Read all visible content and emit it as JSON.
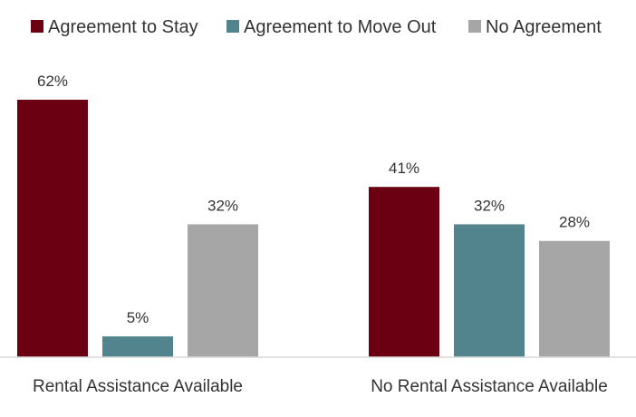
{
  "chart_data": {
    "type": "bar",
    "title": "",
    "xlabel": "",
    "ylabel": "",
    "categories": [
      "Rental Assistance Available",
      "No Rental Assistance Available"
    ],
    "series": [
      {
        "name": "Agreement to Stay",
        "color": "#6b0013",
        "values": [
          62,
          41
        ],
        "labels": [
          "62%",
          "41%"
        ]
      },
      {
        "name": "Agreement to Move Out",
        "color": "#52848d",
        "values": [
          5,
          32
        ],
        "labels": [
          "5%",
          "32%"
        ]
      },
      {
        "name": "No Agreement",
        "color": "#a6a6a6",
        "values": [
          32,
          28
        ],
        "labels": [
          "32%",
          "28%"
        ]
      }
    ],
    "ylim": [
      0,
      62
    ],
    "grid": false,
    "legend_position": "top"
  }
}
